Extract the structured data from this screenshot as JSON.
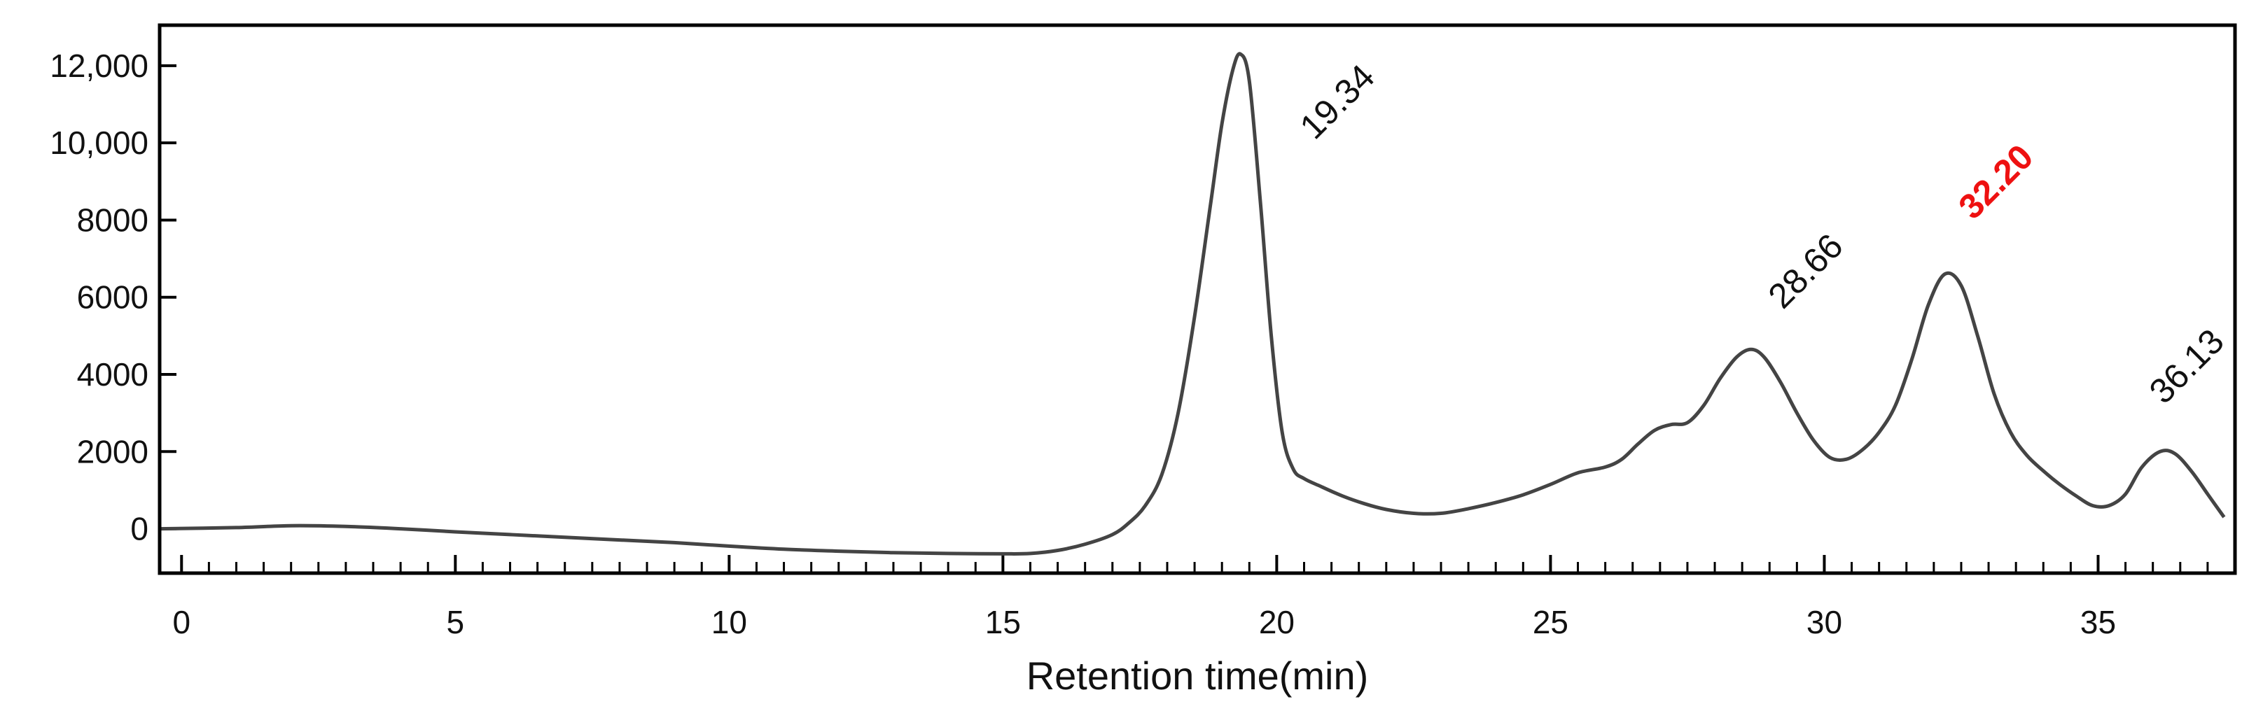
{
  "chart_data": {
    "type": "line",
    "title": "",
    "xlabel": "Retention time(min)",
    "ylabel": "",
    "xlim": [
      -0.4,
      37.5
    ],
    "ylim": [
      -1150,
      13050
    ],
    "grid": false,
    "legend": "none",
    "x_ticks": [
      {
        "value": 0,
        "label": "0"
      },
      {
        "value": 5,
        "label": "5"
      },
      {
        "value": 10,
        "label": "10"
      },
      {
        "value": 15,
        "label": "15"
      },
      {
        "value": 20,
        "label": "20"
      },
      {
        "value": 25,
        "label": "25"
      },
      {
        "value": 30,
        "label": "30"
      },
      {
        "value": 35,
        "label": "35"
      }
    ],
    "y_ticks": [
      {
        "value": 0,
        "label": "0"
      },
      {
        "value": 2000,
        "label": "2000"
      },
      {
        "value": 4000,
        "label": "4000"
      },
      {
        "value": 6000,
        "label": "6000"
      },
      {
        "value": 8000,
        "label": "8000"
      },
      {
        "value": 10000,
        "label": "10,000"
      },
      {
        "value": 12000,
        "label": "12,000"
      }
    ],
    "series": [
      {
        "color": "#444444",
        "x": [
          -0.4,
          1,
          2,
          3,
          4,
          5,
          6,
          7,
          8,
          9,
          10,
          11,
          12,
          13,
          14,
          15,
          15.5,
          16,
          16.5,
          17,
          17.3,
          17.6,
          17.9,
          18.2,
          18.5,
          18.8,
          19.0,
          19.2,
          19.34,
          19.5,
          19.7,
          19.9,
          20.1,
          20.3,
          20.5,
          20.8,
          21.2,
          21.6,
          22,
          22.5,
          23,
          23.5,
          24,
          24.5,
          25,
          25.5,
          26,
          26.3,
          26.6,
          26.9,
          27.2,
          27.5,
          27.8,
          28.1,
          28.4,
          28.66,
          28.9,
          29.2,
          29.5,
          29.8,
          30.1,
          30.4,
          30.7,
          31.0,
          31.3,
          31.6,
          31.9,
          32.2,
          32.5,
          32.8,
          33.1,
          33.4,
          33.7,
          34.0,
          34.3,
          34.6,
          34.9,
          35.2,
          35.5,
          35.8,
          36.13,
          36.4,
          36.7,
          37.0,
          37.3
        ],
        "y": [
          0,
          30,
          80,
          60,
          0,
          -80,
          -150,
          -220,
          -290,
          -360,
          -450,
          -530,
          -580,
          -620,
          -640,
          -650,
          -640,
          -560,
          -400,
          -150,
          150,
          600,
          1400,
          3000,
          5500,
          8500,
          10500,
          11900,
          12300,
          11600,
          8500,
          5000,
          2500,
          1550,
          1300,
          1100,
          850,
          650,
          500,
          400,
          400,
          520,
          680,
          880,
          1150,
          1450,
          1600,
          1800,
          2200,
          2550,
          2700,
          2750,
          3200,
          3900,
          4450,
          4650,
          4450,
          3800,
          3000,
          2300,
          1850,
          1800,
          2050,
          2500,
          3200,
          4400,
          5800,
          6600,
          6300,
          5000,
          3500,
          2500,
          1900,
          1500,
          1150,
          850,
          600,
          600,
          900,
          1600,
          2000,
          1950,
          1500,
          900,
          300
        ]
      }
    ],
    "annotations": [
      {
        "text": "19.34",
        "x": 19.34,
        "y": 12300,
        "highlight": false
      },
      {
        "text": "28.66",
        "x": 28.66,
        "y": 4650,
        "highlight": false
      },
      {
        "text": "32.20",
        "x": 32.2,
        "y": 6600,
        "highlight": true
      },
      {
        "text": "36.13",
        "x": 36.13,
        "y": 2000,
        "highlight": false
      }
    ]
  }
}
